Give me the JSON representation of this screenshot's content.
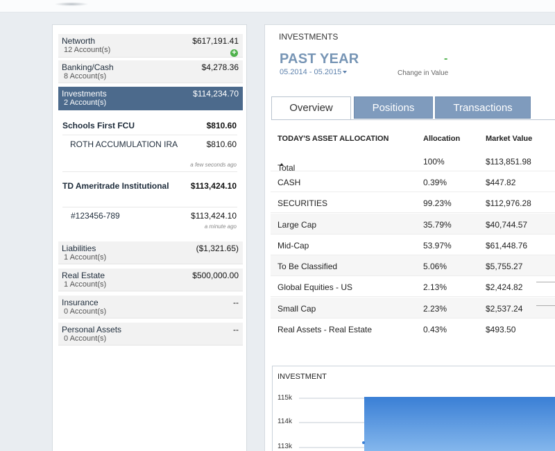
{
  "accounts": {
    "networth": {
      "name": "Networth",
      "sub": "12 Account(s)",
      "amount": "$617,191.41",
      "add_icon": "plus-circle-icon"
    },
    "banking": {
      "name": "Banking/Cash",
      "sub": "8 Account(s)",
      "amount": "$4,278.36"
    },
    "investments": {
      "name": "Investments",
      "sub": "2 Account(s)",
      "amount": "$114,234.70"
    },
    "institutions": [
      {
        "name": "Schools First FCU",
        "amount": "$810.60",
        "sub_name": "ROTH ACCUMULATION IRA",
        "sub_amount": "$810.60",
        "updated": "a few seconds ago"
      },
      {
        "name": "TD Ameritrade Institutional",
        "amount": "$113,424.10",
        "sub_name": "#123456-789",
        "sub_amount": "$113,424.10",
        "updated": "a minute ago"
      }
    ],
    "liabilities": {
      "name": "Liabilities",
      "sub": "1 Account(s)",
      "amount": "($1,321.65)"
    },
    "real_estate": {
      "name": "Real Estate",
      "sub": "1 Account(s)",
      "amount": "$500,000.00"
    },
    "insurance": {
      "name": "Insurance",
      "sub": "0 Account(s)",
      "amount": "--"
    },
    "personal_assets": {
      "name": "Personal Assets",
      "sub": "0 Account(s)",
      "amount": "--"
    }
  },
  "investments_panel": {
    "title": "INVESTMENTS",
    "period": "PAST YEAR",
    "range": "05.2014 - 05.2015",
    "change_value": "-",
    "change_label": "Change in Value",
    "tabs": [
      "Overview",
      "Positions",
      "Transactions"
    ],
    "active_tab": "Overview"
  },
  "allocation": {
    "headers": [
      "TODAY'S ASSET ALLOCATION",
      "Allocation",
      "Market Value"
    ],
    "rows": [
      {
        "name": "Total",
        "allocation": "100%",
        "value": "$113,851.98"
      },
      {
        "name": "CASH",
        "allocation": "0.39%",
        "value": "$447.82"
      },
      {
        "name": "SECURITIES",
        "allocation": "99.23%",
        "value": "$112,976.28"
      },
      {
        "name": "Large Cap",
        "allocation": "35.79%",
        "value": "$40,744.57"
      },
      {
        "name": "Mid-Cap",
        "allocation": "53.97%",
        "value": "$61,448.76"
      },
      {
        "name": "To Be Classified",
        "allocation": "5.06%",
        "value": "$5,755.27"
      },
      {
        "name": "Global Equities - US",
        "allocation": "2.13%",
        "value": "$2,424.82"
      },
      {
        "name": "Small Cap",
        "allocation": "2.23%",
        "value": "$2,537.24"
      },
      {
        "name": "Real Assets - Real Estate",
        "allocation": "0.43%",
        "value": "$493.50"
      }
    ]
  },
  "investment_chart": {
    "title": "INVESTMENT",
    "y_ticks": [
      "115k",
      "114k",
      "113k"
    ],
    "fill_color": "#3a7fd5"
  }
}
